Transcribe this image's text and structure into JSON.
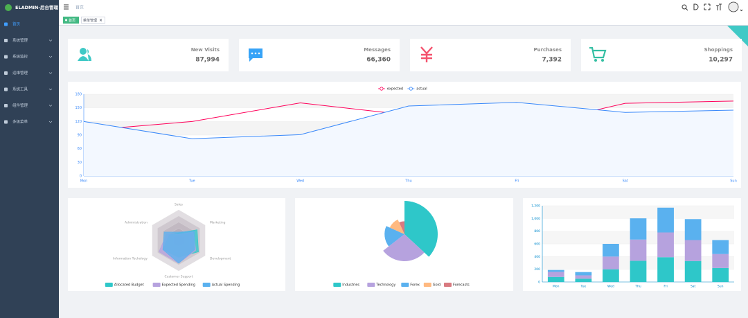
{
  "sidebar": {
    "logo": "ELADMIN-后台管理",
    "menu": [
      "首页",
      "系统管理",
      "系统监控",
      "运维管理",
      "系统工具",
      "组件管理",
      "多级菜单"
    ]
  },
  "header": {
    "breadcrumb": "首页"
  },
  "tags": [
    "首页",
    "菜单管理"
  ],
  "cards": [
    {
      "label": "New Visits",
      "value": "87,994",
      "color": "#40c9c6"
    },
    {
      "label": "Messages",
      "value": "66,360",
      "color": "#36a3f7"
    },
    {
      "label": "Purchases",
      "value": "7,392",
      "color": "#f4516c"
    },
    {
      "label": "Shoppings",
      "value": "10,297",
      "color": "#34bfa3"
    }
  ],
  "chart_data": [
    {
      "type": "line",
      "categories": [
        "Mon",
        "Tue",
        "Wed",
        "Thu",
        "Fri",
        "Sat",
        "Sun"
      ],
      "series": [
        {
          "name": "expected",
          "color": "#ff005a",
          "values": [
            100,
            120,
            161,
            134,
            105,
            160,
            165
          ]
        },
        {
          "name": "actual",
          "color": "#3888fa",
          "values": [
            120,
            82,
            91,
            154,
            162,
            140,
            145
          ]
        }
      ],
      "ylim": [
        0,
        180
      ],
      "yticks": [
        0,
        30,
        60,
        90,
        120,
        150,
        180
      ],
      "grid": true
    },
    {
      "type": "radar",
      "indicators": [
        "Sales",
        "Administration",
        "Information Techology",
        "Customer Support",
        "Development",
        "Marketing"
      ],
      "rlim": [
        0,
        20000
      ],
      "series": [
        {
          "name": "Allocated Budget",
          "color": "#2ec7c9",
          "values": [
            5000,
            7000,
            12000,
            11000,
            15000,
            14000
          ]
        },
        {
          "name": "Expected Spending",
          "color": "#b6a2de",
          "values": [
            4000,
            9000,
            15000,
            15000,
            13000,
            11000
          ]
        },
        {
          "name": "Actual Spending",
          "color": "#5ab1ef",
          "values": [
            5500,
            11000,
            12000,
            15000,
            12000,
            12000
          ]
        }
      ]
    },
    {
      "type": "pie",
      "rose": true,
      "categories": [
        "Industries",
        "Technology",
        "Forex",
        "Gold",
        "Forecasts"
      ],
      "values": [
        320,
        240,
        149,
        100,
        59
      ],
      "colors": [
        "#2ec7c9",
        "#b6a2de",
        "#5ab1ef",
        "#ffb980",
        "#d87a80"
      ]
    },
    {
      "type": "bar",
      "stacked": true,
      "categories": [
        "Mon",
        "Tue",
        "Wed",
        "Thu",
        "Fri",
        "Sat",
        "Sun"
      ],
      "series": [
        {
          "color": "#2ec7c9",
          "values": [
            79,
            52,
            200,
            334,
            390,
            330,
            220
          ]
        },
        {
          "color": "#b6a2de",
          "values": [
            80,
            52,
            200,
            334,
            390,
            330,
            220
          ]
        },
        {
          "color": "#5ab1ef",
          "values": [
            30,
            52,
            200,
            334,
            390,
            330,
            220
          ]
        }
      ],
      "ylim": [
        0,
        1200
      ],
      "yticks": [
        0,
        200,
        400,
        600,
        800,
        {
          "value": 1000,
          "label": "1,000"
        },
        {
          "value": 1200,
          "label": "1,200"
        }
      ],
      "grid": true
    }
  ]
}
